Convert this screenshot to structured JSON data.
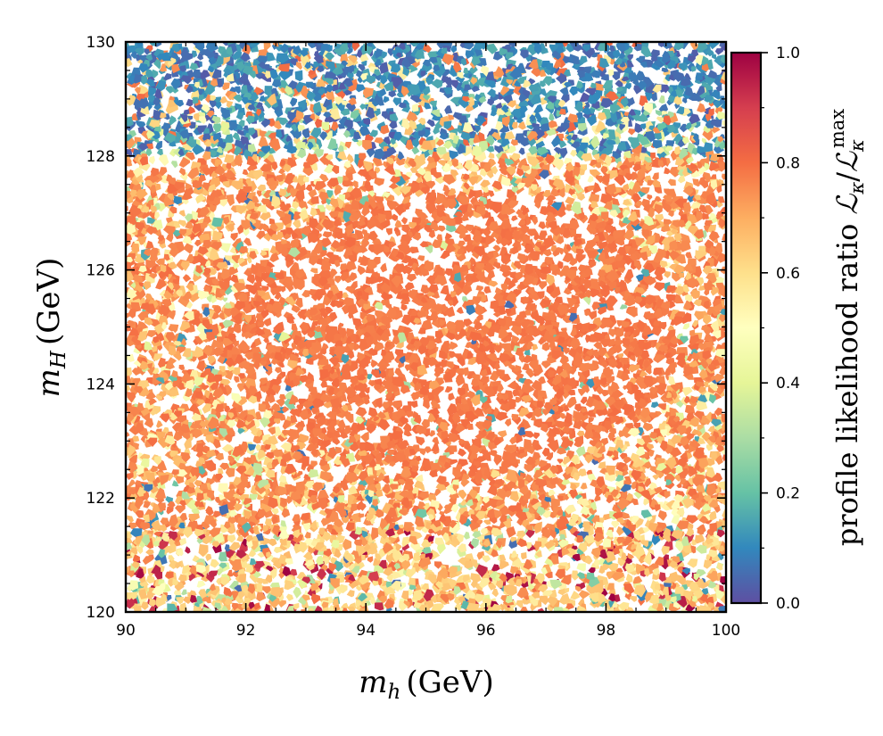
{
  "chart_data": {
    "type": "heatmap",
    "title": "",
    "x": {
      "label_base": "m",
      "label_sub": "h",
      "label_unit": "(GeV)",
      "range": [
        90,
        100
      ],
      "ticks": [
        "90",
        "92",
        "94",
        "96",
        "98",
        "100"
      ],
      "tick_values": [
        90,
        92,
        94,
        96,
        98,
        100
      ]
    },
    "y": {
      "label_base": "m",
      "label_sub": "H",
      "label_unit": "(GeV)",
      "range": [
        120,
        130
      ],
      "ticks": [
        "120",
        "122",
        "124",
        "126",
        "128",
        "130"
      ],
      "tick_values": [
        120,
        122,
        124,
        126,
        128,
        130
      ]
    },
    "colorbar": {
      "label_text": "profile likelihood ratio",
      "label_symbol": "ℒ",
      "label_sub": "κ",
      "label_sup": "max",
      "range": [
        0,
        1
      ],
      "ticks": [
        "0.0",
        "0.2",
        "0.4",
        "0.6",
        "0.8",
        "1.0"
      ],
      "tick_values": [
        0,
        0.2,
        0.4,
        0.6,
        0.8,
        1.0
      ],
      "colormap": "Spectral_r",
      "colors": [
        "#5e4fa2",
        "#3288bd",
        "#66c2a5",
        "#abdda4",
        "#e6f598",
        "#ffffbf",
        "#fee08b",
        "#fdae61",
        "#f46d43",
        "#d53e4f",
        "#9e0142"
      ]
    },
    "description_of_density": {
      "core_region": {
        "x_range": [
          92.5,
          98.5
        ],
        "y_range": [
          122.8,
          127.0
        ],
        "typical_value": 0.78
      },
      "upper_band": {
        "y_range": [
          128.0,
          130.0
        ],
        "typical_value": 0.1
      },
      "lower_band": {
        "y_range": [
          120.0,
          121.5
        ],
        "typical_value": 0.7
      }
    }
  }
}
